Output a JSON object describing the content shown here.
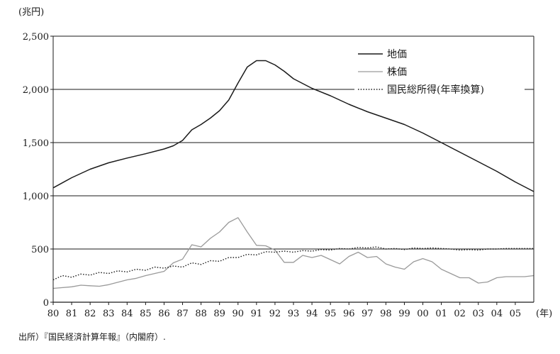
{
  "chart_data": {
    "type": "line",
    "y_unit_label": "(兆円)",
    "x_unit_label": "(年)",
    "ylim": [
      0,
      2500
    ],
    "y_ticks": [
      0,
      500,
      1000,
      1500,
      2000,
      2500
    ],
    "y_tick_labels": [
      "0",
      "500",
      "1,000",
      "1,500",
      "2,000",
      "2,500"
    ],
    "x_ticks": [
      1980,
      1981,
      1982,
      1983,
      1984,
      1985,
      1986,
      1987,
      1988,
      1989,
      1990,
      1991,
      1992,
      1993,
      1994,
      1995,
      1996,
      1997,
      1998,
      1999,
      2000,
      2001,
      2002,
      2003,
      2004,
      2005
    ],
    "x_tick_labels": [
      "80",
      "81",
      "82",
      "83",
      "84",
      "85",
      "86",
      "87",
      "88",
      "89",
      "90",
      "91",
      "92",
      "93",
      "94",
      "95",
      "96",
      "97",
      "98",
      "99",
      "00",
      "01",
      "02",
      "03",
      "04",
      "05"
    ],
    "xlim": [
      1980,
      2006
    ],
    "grid": "horizontal lines at 500, 1,000, 1,500, 2,000",
    "legend_position": "top-right",
    "series": [
      {
        "name": "地価",
        "style": "solid-black",
        "color": "#1a1a1a",
        "points": [
          [
            1980,
            1075
          ],
          [
            1981,
            1170
          ],
          [
            1982,
            1250
          ],
          [
            1983,
            1310
          ],
          [
            1984,
            1355
          ],
          [
            1985,
            1395
          ],
          [
            1986,
            1440
          ],
          [
            1986.5,
            1470
          ],
          [
            1987,
            1520
          ],
          [
            1987.5,
            1620
          ],
          [
            1988,
            1670
          ],
          [
            1988.5,
            1730
          ],
          [
            1989,
            1800
          ],
          [
            1989.5,
            1900
          ],
          [
            1990,
            2060
          ],
          [
            1990.5,
            2210
          ],
          [
            1991,
            2270
          ],
          [
            1991.5,
            2270
          ],
          [
            1992,
            2230
          ],
          [
            1992.5,
            2170
          ],
          [
            1993,
            2100
          ],
          [
            1994,
            2010
          ],
          [
            1995,
            1940
          ],
          [
            1996,
            1860
          ],
          [
            1997,
            1790
          ],
          [
            1998,
            1730
          ],
          [
            1999,
            1670
          ],
          [
            2000,
            1590
          ],
          [
            2001,
            1500
          ],
          [
            2002,
            1410
          ],
          [
            2003,
            1320
          ],
          [
            2004,
            1230
          ],
          [
            2005,
            1130
          ],
          [
            2006,
            1040
          ]
        ]
      },
      {
        "name": "株価",
        "style": "solid-gray",
        "color": "#9a9a9a",
        "points": [
          [
            1980,
            130
          ],
          [
            1981,
            145
          ],
          [
            1981.5,
            160
          ],
          [
            1982,
            155
          ],
          [
            1982.5,
            150
          ],
          [
            1983,
            165
          ],
          [
            1984,
            210
          ],
          [
            1984.5,
            225
          ],
          [
            1985,
            250
          ],
          [
            1985.5,
            270
          ],
          [
            1986,
            290
          ],
          [
            1986.5,
            370
          ],
          [
            1987,
            405
          ],
          [
            1987.5,
            540
          ],
          [
            1988,
            520
          ],
          [
            1988.5,
            600
          ],
          [
            1989,
            660
          ],
          [
            1989.5,
            750
          ],
          [
            1990,
            795
          ],
          [
            1990.5,
            660
          ],
          [
            1991,
            535
          ],
          [
            1991.5,
            530
          ],
          [
            1992,
            490
          ],
          [
            1992.5,
            375
          ],
          [
            1993,
            375
          ],
          [
            1993.5,
            440
          ],
          [
            1994,
            420
          ],
          [
            1994.5,
            440
          ],
          [
            1995,
            400
          ],
          [
            1995.5,
            360
          ],
          [
            1996,
            430
          ],
          [
            1996.5,
            470
          ],
          [
            1997,
            420
          ],
          [
            1997.5,
            430
          ],
          [
            1998,
            360
          ],
          [
            1998.5,
            330
          ],
          [
            1999,
            310
          ],
          [
            1999.5,
            380
          ],
          [
            2000,
            410
          ],
          [
            2000.5,
            380
          ],
          [
            2001,
            310
          ],
          [
            2001.5,
            270
          ],
          [
            2002,
            230
          ],
          [
            2002.5,
            230
          ],
          [
            2003,
            180
          ],
          [
            2003.5,
            190
          ],
          [
            2004,
            230
          ],
          [
            2004.5,
            240
          ],
          [
            2005,
            240
          ],
          [
            2005.5,
            240
          ],
          [
            2006,
            250
          ]
        ]
      },
      {
        "name": "国民総所得(年率換算)",
        "style": "dotted-black",
        "color": "#1a1a1a",
        "points": [
          [
            1980,
            210
          ],
          [
            1980.5,
            250
          ],
          [
            1981,
            235
          ],
          [
            1981.5,
            265
          ],
          [
            1982,
            255
          ],
          [
            1982.5,
            280
          ],
          [
            1983,
            270
          ],
          [
            1983.5,
            295
          ],
          [
            1984,
            285
          ],
          [
            1984.5,
            310
          ],
          [
            1985,
            300
          ],
          [
            1985.5,
            330
          ],
          [
            1986,
            320
          ],
          [
            1986.5,
            340
          ],
          [
            1987,
            330
          ],
          [
            1987.5,
            370
          ],
          [
            1988,
            355
          ],
          [
            1988.5,
            390
          ],
          [
            1989,
            385
          ],
          [
            1989.5,
            420
          ],
          [
            1990,
            420
          ],
          [
            1990.5,
            450
          ],
          [
            1991,
            445
          ],
          [
            1991.5,
            475
          ],
          [
            1992,
            470
          ],
          [
            1992.5,
            480
          ],
          [
            1993,
            470
          ],
          [
            1993.5,
            485
          ],
          [
            1994,
            480
          ],
          [
            1994.5,
            495
          ],
          [
            1995,
            490
          ],
          [
            1995.5,
            505
          ],
          [
            1996,
            500
          ],
          [
            1996.5,
            515
          ],
          [
            1997,
            510
          ],
          [
            1997.5,
            520
          ],
          [
            1998,
            500
          ],
          [
            1998.5,
            505
          ],
          [
            1999,
            495
          ],
          [
            1999.5,
            510
          ],
          [
            2000,
            505
          ],
          [
            2000.5,
            510
          ],
          [
            2001,
            505
          ],
          [
            2001.5,
            500
          ],
          [
            2002,
            490
          ],
          [
            2002.5,
            495
          ],
          [
            2003,
            490
          ],
          [
            2003.5,
            500
          ],
          [
            2004,
            500
          ],
          [
            2004.5,
            505
          ],
          [
            2005,
            505
          ],
          [
            2005.5,
            505
          ],
          [
            2006,
            505
          ]
        ]
      }
    ]
  },
  "source_note": "出所）『国民経済計算年報』（内閣府）."
}
